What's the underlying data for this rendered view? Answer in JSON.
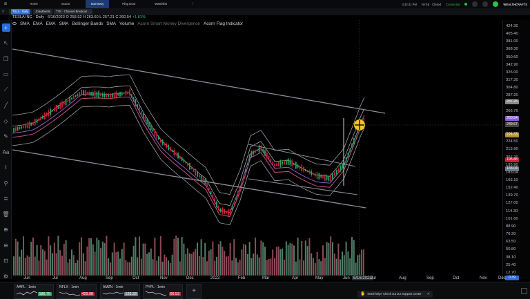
{
  "top_nav": {
    "menu_icon": "hamburger-icon",
    "items": [
      "Home",
      "Scans",
      "Summary",
      "Plug Door",
      "Watchlist",
      ""
    ],
    "active_index": 2
  },
  "top_right": {
    "time": "4:32:41 PM",
    "market": "NYSE · Closed",
    "status": "Connected",
    "brand": "WEALTHCRAFTS"
  },
  "tabs": [
    {
      "badge": "TSLA · Daily",
      "label": ""
    },
    {
      "badge": "",
      "label": "JoleyBeetle"
    },
    {
      "badge": "",
      "label": "TYE · Channel Breakout ..."
    }
  ],
  "chart_header": {
    "symbol": "TESLA INC",
    "interval": "Daily",
    "date": "6/16/2023",
    "ohlc": "O 258.92  H 263.60  L 257.21  C 260.54",
    "change": "+1.81%"
  },
  "indicators": [
    "SMA",
    "EMA",
    "EMA",
    "SMA",
    "Bollinger Bands",
    "SMA",
    "Volume",
    "Acorn Smart Money Divergence",
    "Acorn Flag Indicator"
  ],
  "y_ticks": [
    "424.30",
    "405.40",
    "381.00",
    "368.30",
    "350.60",
    "342.90",
    "325.00",
    "317.30",
    "304.80",
    "287.20",
    "270.40",
    "266.70",
    "258.60",
    "249.67",
    "241.20",
    "224.50",
    "215.90",
    "201.20",
    "195.90",
    "183.04",
    "165.10",
    "152.40",
    "139.70",
    "127.00",
    "114.30",
    "101.60",
    "88.90",
    "76.20",
    "63.50",
    "50.80",
    "38.10",
    "25.40",
    "12.70"
  ],
  "price_tags": [
    {
      "text": "287.25",
      "color": "#8a8a8a"
    },
    {
      "text": "260.54",
      "color": "#8e5bd1"
    },
    {
      "text": "249.67",
      "color": "#444"
    },
    {
      "text": "224.33",
      "color": "#b3902e"
    },
    {
      "text": "195.88",
      "color": "#c8203a"
    },
    {
      "text": "183.04",
      "color": "#6f7780"
    },
    {
      "text": "0.39",
      "color": "#2d6cdf"
    }
  ],
  "x_labels": [
    "Jun",
    "Jul",
    "Aug",
    "Sep",
    "Oct",
    "Nov",
    "Dec",
    "2023",
    "Feb",
    "Mar",
    "Apr",
    "May",
    "Jun",
    "6/16/2023",
    "Jul",
    "Aug",
    "Sep",
    "Oct",
    "Nov",
    "Dec"
  ],
  "left_tools": [
    "plus-icon",
    "arrow-icon",
    "copy-icon",
    "document-icon",
    "ruler-icon",
    "trend-line-icon",
    "shapes-icon",
    "pencil-icon",
    "text-icon",
    "brush-icon",
    "link-icon",
    "arrange-icon",
    "trash-icon",
    "zoom-in-icon",
    "zoom-out-icon",
    "lock-icon",
    "settings-icon"
  ],
  "mini_charts": [
    {
      "symbol": "AAPL · 1min",
      "price": "186.70",
      "color": "#26a65b"
    },
    {
      "symbol": "NFLX · 1min",
      "price": "429.98",
      "color": "#c8203a"
    },
    {
      "symbol": "AMZN · 1min",
      "price": "125.32",
      "color": "#6f7780"
    },
    {
      "symbol": "PYPL · 1min",
      "price": "66.53",
      "color": "#c8203a"
    }
  ],
  "support_text": "Need help? Check out our Support Center",
  "colors": {
    "up": "#26a65b",
    "down": "#c8203a",
    "accent": "#2d6cdf",
    "cursor": "#f2c12e"
  }
}
